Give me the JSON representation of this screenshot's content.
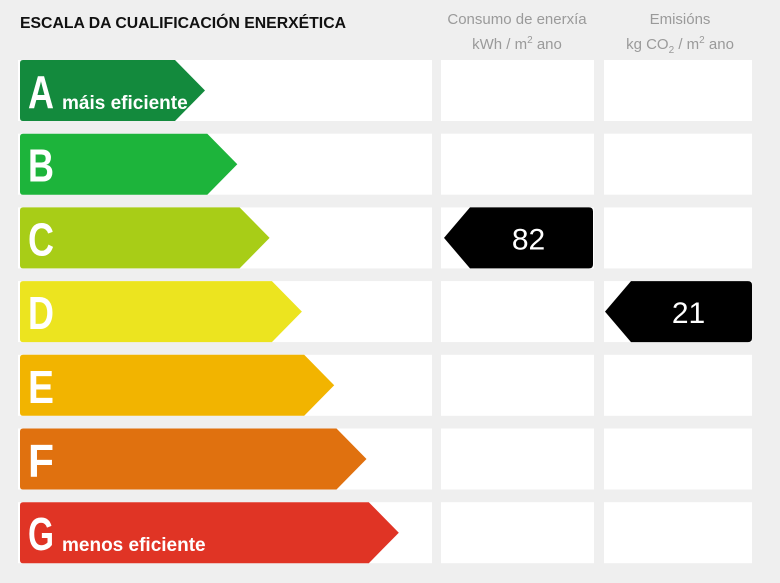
{
  "header": {
    "title": "ESCALA DA CUALIFICACIÓN ENERXÉTICA",
    "consumption": {
      "line1": "Consumo de enerxía",
      "unit_a": "kWh / m",
      "unit_sup": "2",
      "unit_b": " ano"
    },
    "emissions": {
      "line1": "Emisións",
      "unit_a": "kg CO",
      "unit_sub": "2",
      "unit_b": " / m",
      "unit_sup": "2",
      "unit_c": " ano"
    }
  },
  "ratings": [
    {
      "letter": "A",
      "note": "máis eficiente",
      "color": "#138a3d"
    },
    {
      "letter": "B",
      "color": "#1db43b"
    },
    {
      "letter": "C",
      "color": "#a8cd17"
    },
    {
      "letter": "D",
      "color": "#ece41f"
    },
    {
      "letter": "E",
      "color": "#f2b400"
    },
    {
      "letter": "F",
      "color": "#e0710f"
    },
    {
      "letter": "G",
      "note": "menos eficiente",
      "color": "#e03425"
    }
  ],
  "consumption": {
    "rating": "C",
    "value": 82
  },
  "emissions": {
    "rating": "D",
    "value": 21
  }
}
